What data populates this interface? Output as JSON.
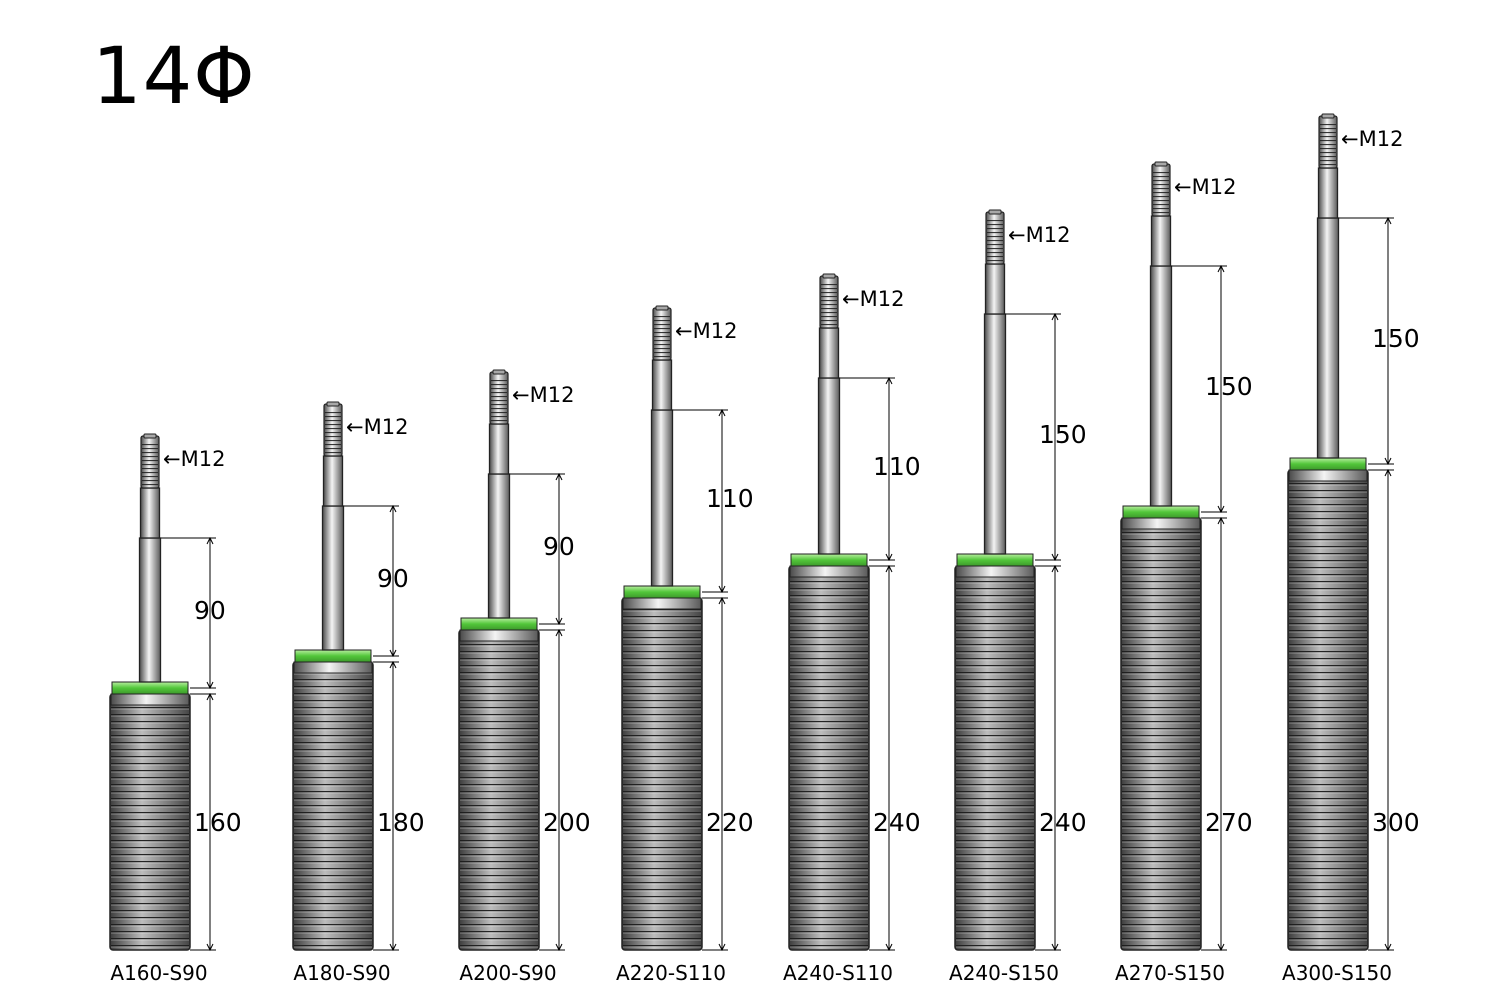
{
  "title": "14Φ",
  "colors": {
    "outline": "#222222",
    "metal_light": "#f4f4f4",
    "metal_mid": "#a8a8a8",
    "metal_dark": "#4a4a4a",
    "ring": "#6fd45a",
    "dimension_line": "#000000"
  },
  "products": [
    {
      "model": "A160-S90",
      "body": "160",
      "stroke": "90",
      "thread": "←M12"
    },
    {
      "model": "A180-S90",
      "body": "180",
      "stroke": "90",
      "thread": "←M12"
    },
    {
      "model": "A200-S90",
      "body": "200",
      "stroke": "90",
      "thread": "←M12"
    },
    {
      "model": "A220-S110",
      "body": "220",
      "stroke": "110",
      "thread": "←M12"
    },
    {
      "model": "A240-S110",
      "body": "240",
      "stroke": "110",
      "thread": "←M12"
    },
    {
      "model": "A240-S150",
      "body": "240",
      "stroke": "150",
      "thread": "←M12"
    },
    {
      "model": "A270-S150",
      "body": "270",
      "stroke": "150",
      "thread": "←M12"
    },
    {
      "model": "A300-S150",
      "body": "300",
      "stroke": "150",
      "thread": "←M12"
    }
  ]
}
